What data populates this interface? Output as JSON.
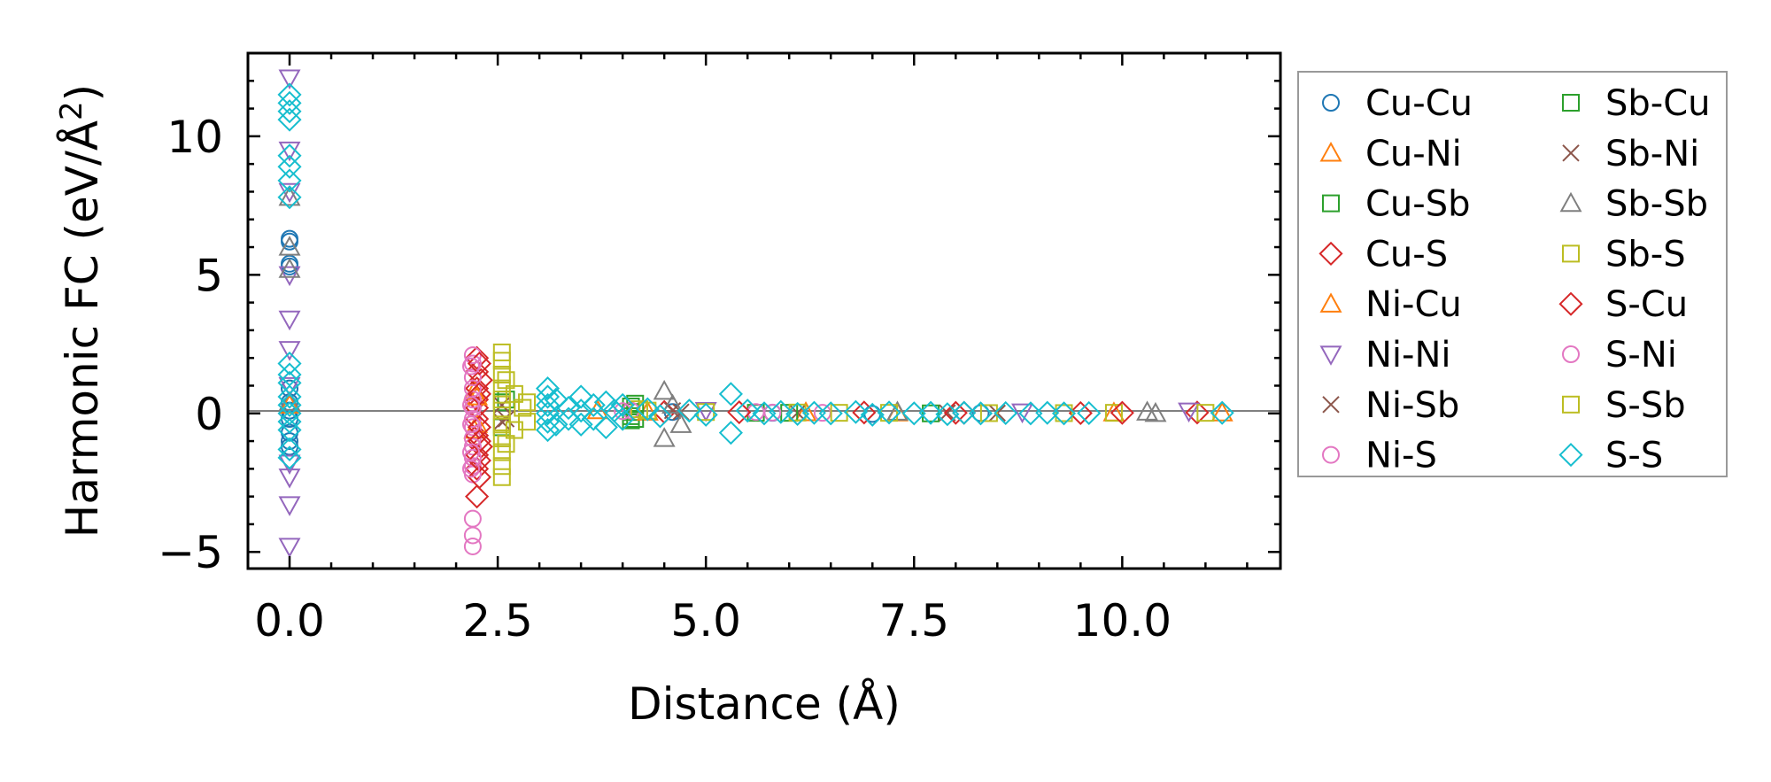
{
  "chart_data": {
    "type": "scatter",
    "title": "",
    "xlabel": "Distance (Å)",
    "ylabel_main": "Harmonic FC (eV/Å",
    "ylabel_sup": "2",
    "ylabel_close": ")",
    "xlim": [
      -0.5,
      11.9
    ],
    "ylim": [
      -5.6,
      13.0
    ],
    "xticks": [
      0.0,
      2.5,
      5.0,
      7.5,
      10.0
    ],
    "xtick_labels": [
      "0.0",
      "2.5",
      "5.0",
      "7.5",
      "10.0"
    ],
    "yticks": [
      -5,
      0,
      5,
      10
    ],
    "ytick_labels": [
      "−5",
      "0",
      "5",
      "10"
    ],
    "x_minor_step": 0.5,
    "y_minor_step": 1,
    "reference_line_y": 0,
    "legend_location": "outside-right",
    "series": [
      {
        "name": "Cu-Cu",
        "marker": "circle",
        "color": "#1f77b4",
        "points": [
          [
            0,
            6.3
          ],
          [
            0,
            6.2
          ],
          [
            0,
            5.4
          ],
          [
            0,
            5.3
          ],
          [
            0,
            0.9
          ],
          [
            0,
            0.4
          ],
          [
            0,
            0.1
          ],
          [
            0,
            -0.2
          ],
          [
            0,
            -0.7
          ],
          [
            0,
            -1.0
          ],
          [
            0,
            -1.2
          ],
          [
            4.6,
            0.05
          ],
          [
            5.8,
            0.02
          ],
          [
            7.0,
            -0.02
          ],
          [
            8.3,
            0.01
          ]
        ]
      },
      {
        "name": "Cu-Ni",
        "marker": "triangle-up",
        "color": "#ff7f0e",
        "points": [
          [
            0,
            0.3
          ],
          [
            2.22,
            0.8
          ],
          [
            2.22,
            -0.6
          ],
          [
            3.7,
            0.1
          ],
          [
            6.2,
            0.03
          ],
          [
            9.9,
            0.02
          ]
        ]
      },
      {
        "name": "Cu-Sb",
        "marker": "square",
        "color": "#2ca02c",
        "points": [
          [
            2.55,
            0.4
          ],
          [
            2.55,
            -0.5
          ],
          [
            4.1,
            0.25
          ],
          [
            4.1,
            0.05
          ],
          [
            4.1,
            -0.1
          ],
          [
            4.1,
            -0.25
          ],
          [
            5.6,
            0.02
          ],
          [
            7.7,
            0.0
          ]
        ]
      },
      {
        "name": "Cu-S",
        "marker": "diamond",
        "color": "#d62728",
        "points": [
          [
            2.25,
            2.0
          ],
          [
            2.25,
            1.5
          ],
          [
            2.25,
            0.9
          ],
          [
            2.25,
            0.5
          ],
          [
            2.25,
            0.2
          ],
          [
            2.25,
            -0.2
          ],
          [
            2.25,
            -0.8
          ],
          [
            2.25,
            -1.5
          ],
          [
            2.25,
            -2.0
          ],
          [
            2.25,
            -3.0
          ],
          [
            2.3,
            1.2
          ],
          [
            2.3,
            -1.2
          ],
          [
            4.5,
            0.05
          ],
          [
            6.9,
            0.03
          ],
          [
            8.1,
            0.02
          ],
          [
            9.5,
            0.01
          ],
          [
            10.9,
            0.03
          ]
        ]
      },
      {
        "name": "Ni-Cu",
        "marker": "triangle-up",
        "color": "#ff7f0e",
        "points": [
          [
            2.25,
            0.6
          ],
          [
            2.25,
            -0.4
          ],
          [
            4.3,
            0.05
          ],
          [
            7.3,
            0.02
          ],
          [
            11.2,
            0.02
          ]
        ]
      },
      {
        "name": "Ni-Ni",
        "marker": "triangle-down",
        "color": "#9467bd",
        "points": [
          [
            0,
            12.1
          ],
          [
            0,
            9.5
          ],
          [
            0,
            8.0
          ],
          [
            0,
            5.0
          ],
          [
            0,
            3.4
          ],
          [
            0,
            2.3
          ],
          [
            0,
            1.0
          ],
          [
            0,
            -1.8
          ],
          [
            0,
            -2.3
          ],
          [
            0,
            -3.3
          ],
          [
            0,
            -4.8
          ],
          [
            5.0,
            0.1
          ],
          [
            8.8,
            0.05
          ],
          [
            10.8,
            0.08
          ]
        ]
      },
      {
        "name": "Ni-Sb",
        "marker": "x",
        "color": "#8c564b",
        "points": [
          [
            2.55,
            0.3
          ],
          [
            2.55,
            -0.3
          ],
          [
            4.6,
            0.1
          ],
          [
            6.1,
            0.02
          ],
          [
            8.5,
            0.01
          ]
        ]
      },
      {
        "name": "Ni-S",
        "marker": "circle",
        "color": "#e377c2",
        "points": [
          [
            2.2,
            2.1
          ],
          [
            2.2,
            1.8
          ],
          [
            2.2,
            1.3
          ],
          [
            2.2,
            0.9
          ],
          [
            2.2,
            0.5
          ],
          [
            2.2,
            0.2
          ],
          [
            2.2,
            -0.2
          ],
          [
            2.2,
            -0.5
          ],
          [
            2.2,
            -0.9
          ],
          [
            2.2,
            -1.2
          ],
          [
            2.2,
            -1.6
          ],
          [
            2.2,
            -1.9
          ],
          [
            2.2,
            -2.2
          ],
          [
            2.2,
            -3.8
          ],
          [
            2.2,
            -4.4
          ],
          [
            2.2,
            -4.8
          ],
          [
            4.1,
            0.1
          ],
          [
            5.6,
            0.05
          ],
          [
            6.4,
            0.02
          ]
        ]
      },
      {
        "name": "Sb-Cu",
        "marker": "square",
        "color": "#2ca02c",
        "points": [
          [
            2.6,
            0.5
          ],
          [
            4.15,
            0.35
          ],
          [
            4.15,
            -0.2
          ],
          [
            6.0,
            0.02
          ]
        ]
      },
      {
        "name": "Sb-Ni",
        "marker": "x",
        "color": "#8c564b",
        "points": [
          [
            2.6,
            -0.2
          ],
          [
            4.7,
            0.05
          ],
          [
            7.9,
            0.02
          ]
        ]
      },
      {
        "name": "Sb-Sb",
        "marker": "triangle-up",
        "color": "#7f7f7f",
        "points": [
          [
            0,
            7.8
          ],
          [
            0,
            6.0
          ],
          [
            0,
            5.2
          ],
          [
            0,
            0.4
          ],
          [
            4.5,
            0.8
          ],
          [
            4.5,
            -0.9
          ],
          [
            4.6,
            0.3
          ],
          [
            4.7,
            -0.4
          ],
          [
            7.3,
            0.05
          ],
          [
            10.3,
            0.05
          ],
          [
            10.4,
            0.0
          ]
        ]
      },
      {
        "name": "Sb-S",
        "marker": "square",
        "color": "#bcbd22",
        "points": [
          [
            2.55,
            2.2
          ],
          [
            2.55,
            1.9
          ],
          [
            2.55,
            1.4
          ],
          [
            2.55,
            0.9
          ],
          [
            2.55,
            0.5
          ],
          [
            2.55,
            0.1
          ],
          [
            2.55,
            -0.4
          ],
          [
            2.55,
            -0.9
          ],
          [
            2.55,
            -1.4
          ],
          [
            2.55,
            -1.9
          ],
          [
            2.55,
            -2.3
          ],
          [
            2.7,
            0.7
          ],
          [
            2.7,
            -0.6
          ],
          [
            2.85,
            0.4
          ],
          [
            2.85,
            -0.3
          ],
          [
            4.3,
            0.1
          ],
          [
            5.0,
            0.05
          ],
          [
            6.1,
            0.03
          ],
          [
            7.2,
            0.02
          ],
          [
            8.4,
            0.01
          ],
          [
            9.9,
            0.02
          ],
          [
            11.0,
            0.02
          ]
        ]
      },
      {
        "name": "S-Cu",
        "marker": "diamond",
        "color": "#d62728",
        "points": [
          [
            2.28,
            1.8
          ],
          [
            2.28,
            0.7
          ],
          [
            2.28,
            -0.5
          ],
          [
            2.28,
            -1.0
          ],
          [
            2.28,
            -1.7
          ],
          [
            2.28,
            -2.3
          ],
          [
            5.4,
            0.04
          ],
          [
            8.0,
            0.02
          ],
          [
            10.0,
            0.02
          ]
        ]
      },
      {
        "name": "S-Ni",
        "marker": "circle",
        "color": "#e377c2",
        "points": [
          [
            2.18,
            1.7
          ],
          [
            2.18,
            0.3
          ],
          [
            2.18,
            -0.4
          ],
          [
            2.18,
            -1.4
          ],
          [
            2.18,
            -2.0
          ],
          [
            4.0,
            0.08
          ],
          [
            5.8,
            0.03
          ]
        ]
      },
      {
        "name": "S-Sb",
        "marker": "square",
        "color": "#bcbd22",
        "points": [
          [
            2.6,
            1.2
          ],
          [
            2.6,
            -1.1
          ],
          [
            2.8,
            0.2
          ],
          [
            4.2,
            0.15
          ],
          [
            6.6,
            0.02
          ],
          [
            9.3,
            0.01
          ]
        ]
      },
      {
        "name": "S-S",
        "marker": "diamond",
        "color": "#17becf",
        "points": [
          [
            0,
            11.5
          ],
          [
            0,
            11.2
          ],
          [
            0,
            10.9
          ],
          [
            0,
            10.6
          ],
          [
            0,
            9.3
          ],
          [
            0,
            8.9
          ],
          [
            0,
            8.4
          ],
          [
            0,
            7.8
          ],
          [
            0,
            1.8
          ],
          [
            0,
            1.4
          ],
          [
            0,
            1.1
          ],
          [
            0,
            0.6
          ],
          [
            0,
            0.3
          ],
          [
            0,
            0.0
          ],
          [
            0,
            -0.3
          ],
          [
            0,
            -0.6
          ],
          [
            0,
            -1.3
          ],
          [
            0,
            -1.6
          ],
          [
            3.1,
            0.9
          ],
          [
            3.1,
            0.6
          ],
          [
            3.1,
            0.3
          ],
          [
            3.1,
            0.0
          ],
          [
            3.1,
            -0.3
          ],
          [
            3.1,
            -0.6
          ],
          [
            3.2,
            0.5
          ],
          [
            3.2,
            -0.4
          ],
          [
            3.35,
            0.2
          ],
          [
            3.35,
            -0.2
          ],
          [
            3.5,
            0.6
          ],
          [
            3.5,
            0.1
          ],
          [
            3.5,
            -0.4
          ],
          [
            3.65,
            0.3
          ],
          [
            3.65,
            -0.2
          ],
          [
            3.8,
            0.4
          ],
          [
            3.8,
            -0.5
          ],
          [
            3.9,
            0.1
          ],
          [
            4.0,
            0.3
          ],
          [
            4.0,
            -0.2
          ],
          [
            4.3,
            0.15
          ],
          [
            4.45,
            -0.1
          ],
          [
            4.8,
            0.1
          ],
          [
            5.0,
            -0.05
          ],
          [
            5.3,
            0.7
          ],
          [
            5.3,
            -0.7
          ],
          [
            5.5,
            0.1
          ],
          [
            5.7,
            0.0
          ],
          [
            5.9,
            0.05
          ],
          [
            6.1,
            -0.02
          ],
          [
            6.3,
            0.02
          ],
          [
            6.5,
            0.0
          ],
          [
            6.8,
            0.05
          ],
          [
            7.0,
            -0.05
          ],
          [
            7.2,
            0.03
          ],
          [
            7.5,
            0.0
          ],
          [
            7.7,
            0.02
          ],
          [
            7.9,
            -0.03
          ],
          [
            8.1,
            0.02
          ],
          [
            8.3,
            0.0
          ],
          [
            8.6,
            0.01
          ],
          [
            8.9,
            0.0
          ],
          [
            9.1,
            0.02
          ],
          [
            9.3,
            0.0
          ],
          [
            9.6,
            0.01
          ],
          [
            11.2,
            0.02
          ]
        ]
      }
    ]
  }
}
